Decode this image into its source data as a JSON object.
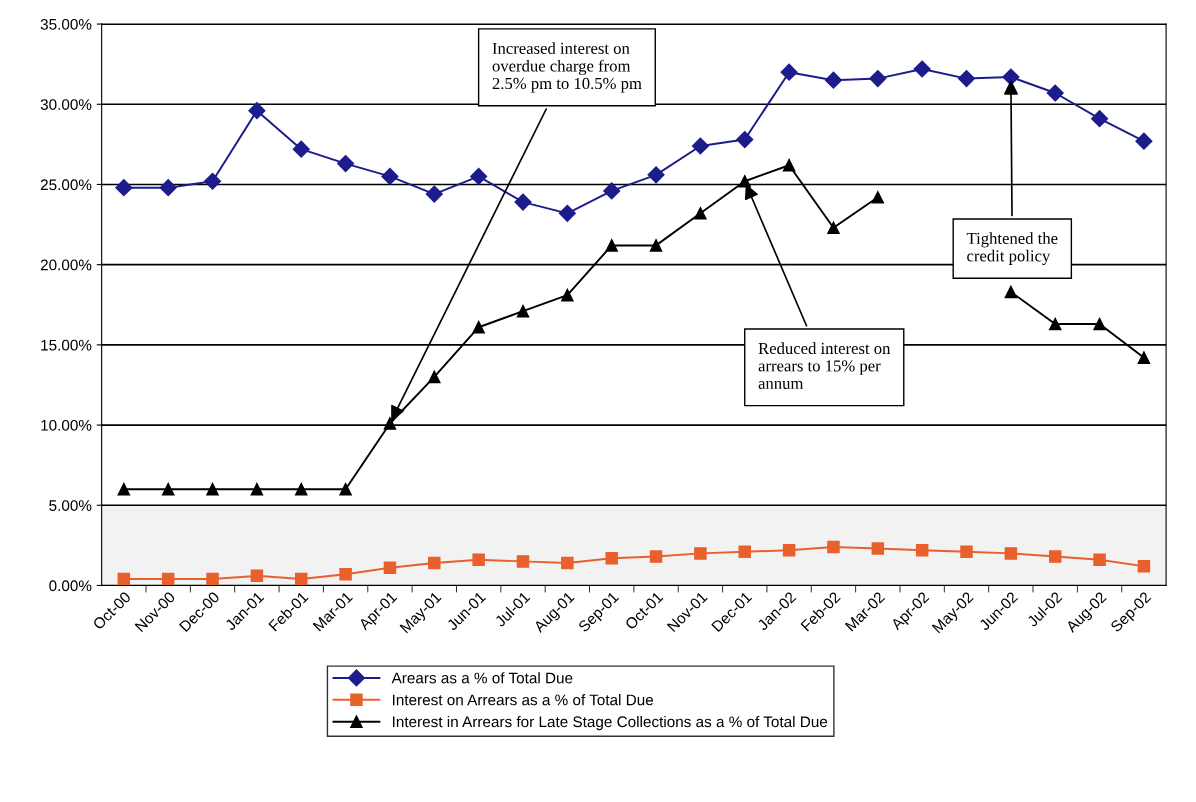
{
  "chart_data": {
    "type": "line",
    "categories": [
      "Oct-00",
      "Nov-00",
      "Dec-00",
      "Jan-01",
      "Feb-01",
      "Mar-01",
      "Apr-01",
      "May-01",
      "Jun-01",
      "Jul-01",
      "Aug-01",
      "Sep-01",
      "Oct-01",
      "Nov-01",
      "Dec-01",
      "Jan-02",
      "Feb-02",
      "Mar-02",
      "Apr-02",
      "May-02",
      "Jun-02",
      "Jul-02",
      "Aug-02",
      "Sep-02"
    ],
    "series": [
      {
        "name": "Arears as a % of Total Due",
        "color": "#1c1c8c",
        "marker": "diamond",
        "values": [
          24.8,
          24.8,
          25.2,
          29.6,
          27.2,
          26.3,
          25.5,
          24.4,
          25.5,
          23.9,
          23.2,
          24.6,
          25.6,
          27.4,
          27.8,
          32.0,
          31.5,
          31.6,
          32.2,
          31.6,
          31.7,
          30.7,
          29.1,
          27.7
        ]
      },
      {
        "name": "Interest on Arrears as a % of Total Due",
        "color": "#e8602c",
        "marker": "square",
        "values": [
          0.4,
          0.4,
          0.4,
          0.6,
          0.4,
          0.7,
          1.1,
          1.4,
          1.6,
          1.5,
          1.4,
          1.7,
          1.8,
          2.0,
          2.1,
          2.2,
          2.4,
          2.3,
          2.2,
          2.1,
          2.0,
          1.8,
          1.6,
          1.2
        ]
      },
      {
        "name": "Interest in Arrears for Late Stage Collections as a % of Total Due",
        "color": "#000000",
        "marker": "triangle",
        "values": [
          6.0,
          6.0,
          6.0,
          6.0,
          6.0,
          6.0,
          10.1,
          13.0,
          16.1,
          17.1,
          18.1,
          21.2,
          21.2,
          23.2,
          25.2,
          26.2,
          22.3,
          24.2,
          null,
          null,
          18.3,
          16.3,
          16.3,
          14.2
        ]
      }
    ],
    "ylim": [
      0,
      35
    ],
    "yticks": [
      {
        "value": 0,
        "label": "0.00%"
      },
      {
        "value": 5,
        "label": "5.00%"
      },
      {
        "value": 10,
        "label": "10.00%"
      },
      {
        "value": 15,
        "label": "15.00%"
      },
      {
        "value": 20,
        "label": "20.00%"
      },
      {
        "value": 25,
        "label": "25.00%"
      },
      {
        "value": 30,
        "label": "30.00%"
      },
      {
        "value": 35,
        "label": "35.00%"
      }
    ],
    "grid": "y",
    "bands": [
      {
        "axis": "y",
        "from": 0,
        "to": 5,
        "color": "#f2f2f2"
      }
    ],
    "annotations": [
      {
        "text": "Increased interest on\noverdue charge from\n2.5% pm to 10.5% pm",
        "x": "Apr-01",
        "y": 10.1
      },
      {
        "text": "Reduced interest on\narrears to 15% per\nannum",
        "x": "Dec-01",
        "y": 25.2
      },
      {
        "text": "Tightened the\ncredit policy",
        "x": "Jun-02",
        "y": 31.7
      }
    ],
    "legend": "bottom",
    "line_style": "solid"
  }
}
